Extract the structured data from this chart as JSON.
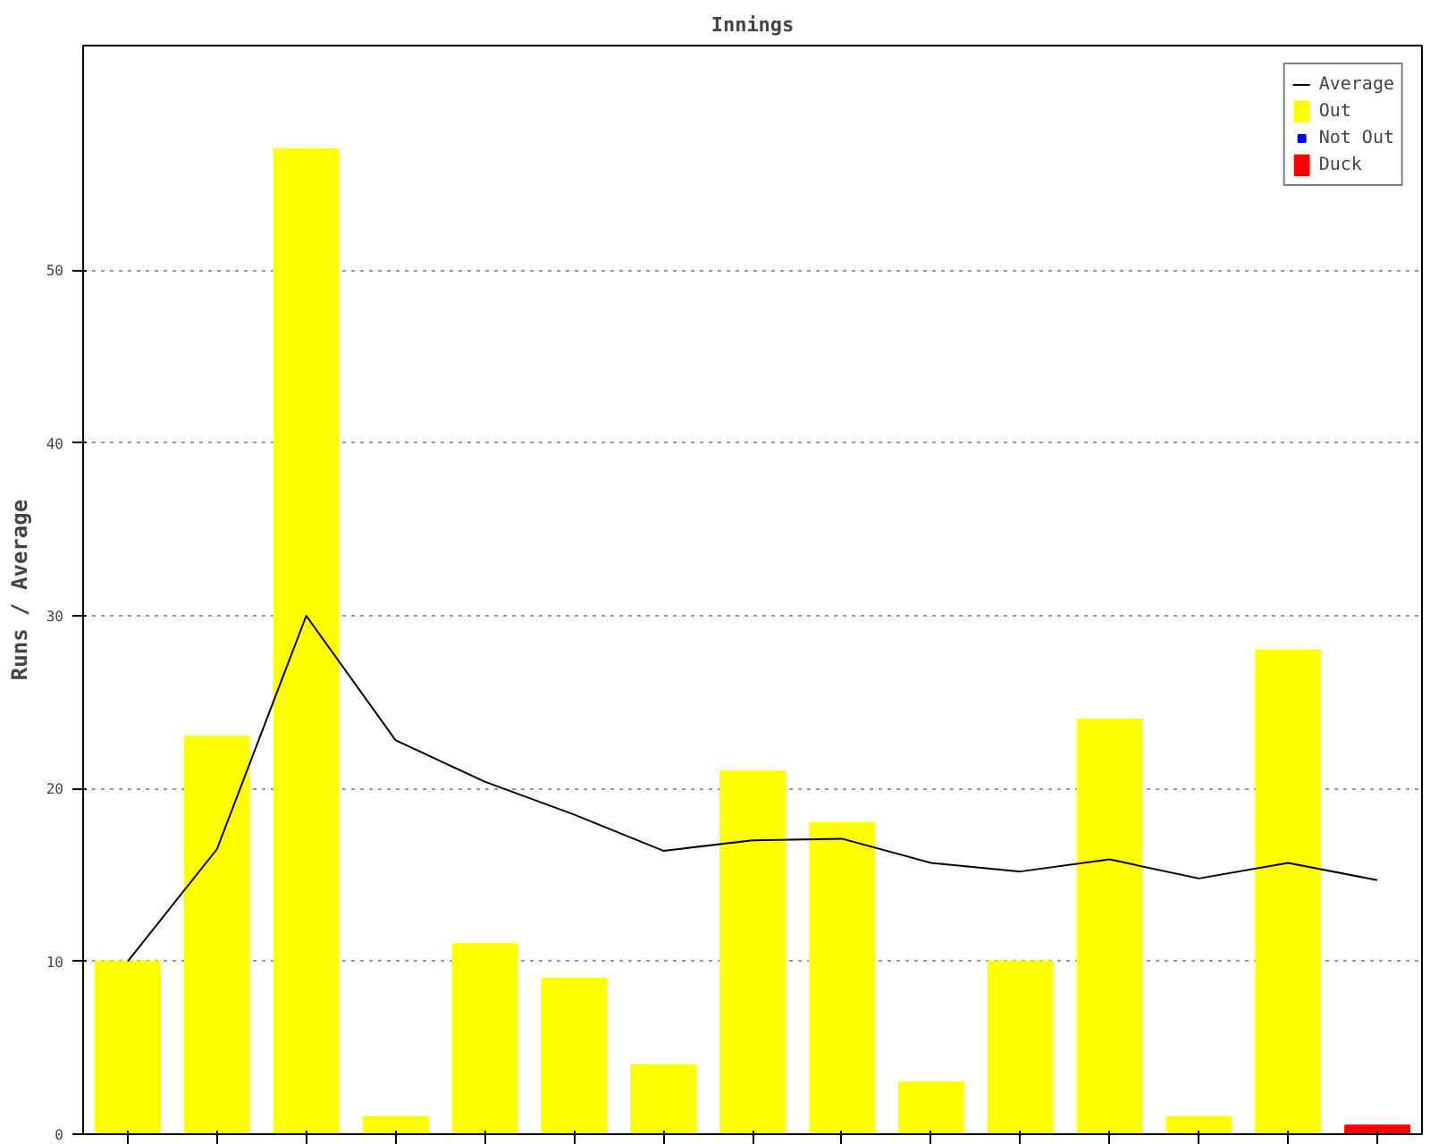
{
  "chart_data": {
    "type": "bar",
    "title": "Innings",
    "ylabel": "Runs / Average",
    "categories": [
      null,
      null,
      null,
      null,
      null,
      null,
      null,
      null,
      null,
      null,
      null,
      null,
      null,
      null,
      null
    ],
    "series": [
      {
        "name": "Out",
        "color": "#ffff00",
        "values": [
          10,
          23,
          57,
          1,
          11,
          9,
          4,
          21,
          18,
          3,
          10,
          24,
          1,
          28,
          null
        ]
      },
      {
        "name": "Not Out",
        "color": "#0000ff",
        "values": [
          null,
          null,
          null,
          null,
          null,
          null,
          null,
          null,
          null,
          null,
          null,
          null,
          null,
          null,
          null
        ]
      },
      {
        "name": "Duck",
        "color": "#ff0000",
        "values": [
          null,
          null,
          null,
          null,
          null,
          null,
          null,
          null,
          null,
          null,
          null,
          null,
          null,
          null,
          0.5
        ]
      },
      {
        "name": "Average",
        "type": "line",
        "color": "#000000",
        "values": [
          10,
          16.5,
          30,
          22.8,
          20.4,
          18.5,
          16.4,
          17,
          17.1,
          15.7,
          15.2,
          15.9,
          14.8,
          15.7,
          14.7
        ]
      }
    ],
    "ylim": [
      0,
      63
    ],
    "yticks": [
      0,
      10,
      20,
      30,
      40,
      50
    ],
    "grid": "y",
    "legend": "top right",
    "tick_labels": "y",
    "line_style": "solid"
  }
}
